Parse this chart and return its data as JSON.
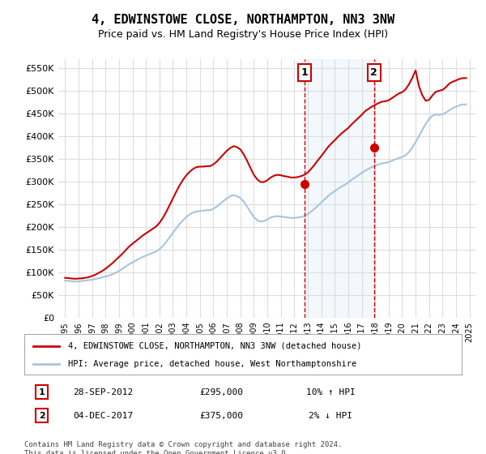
{
  "title": "4, EDWINSTOWE CLOSE, NORTHAMPTON, NN3 3NW",
  "subtitle": "Price paid vs. HM Land Registry's House Price Index (HPI)",
  "ylabel": "",
  "xlabel": "",
  "ylim": [
    0,
    570000
  ],
  "yticks": [
    0,
    50000,
    100000,
    150000,
    200000,
    250000,
    300000,
    350000,
    400000,
    450000,
    500000,
    550000
  ],
  "ytick_labels": [
    "£0",
    "£50K",
    "£100K",
    "£150K",
    "£200K",
    "£250K",
    "£300K",
    "£350K",
    "£400K",
    "£450K",
    "£500K",
    "£550K"
  ],
  "xlim_start": 1994.5,
  "xlim_end": 2025.5,
  "xtick_years": [
    1995,
    1996,
    1997,
    1998,
    1999,
    2000,
    2001,
    2002,
    2003,
    2004,
    2005,
    2006,
    2007,
    2008,
    2009,
    2010,
    2011,
    2012,
    2013,
    2014,
    2015,
    2016,
    2017,
    2018,
    2019,
    2020,
    2021,
    2022,
    2023,
    2024,
    2025
  ],
  "hpi_line_color": "#a8c4e0",
  "price_line_color": "#cc0000",
  "marker_color": "#cc0000",
  "dashed_line_color": "#cc0000",
  "shaded_color": "#d0e4f7",
  "purchase1_x": 2012.75,
  "purchase1_y": 295000,
  "purchase2_x": 2017.92,
  "purchase2_y": 375000,
  "legend_label1": "4, EDWINSTOWE CLOSE, NORTHAMPTON, NN3 3NW (detached house)",
  "legend_label2": "HPI: Average price, detached house, West Northamptonshire",
  "note1_num": "1",
  "note1_date": "28-SEP-2012",
  "note1_price": "£295,000",
  "note1_hpi": "10% ↑ HPI",
  "note2_num": "2",
  "note2_date": "04-DEC-2017",
  "note2_price": "£375,000",
  "note2_hpi": "2% ↓ HPI",
  "footnote": "Contains HM Land Registry data © Crown copyright and database right 2024.\nThis data is licensed under the Open Government Licence v3.0.",
  "bg_color": "#ffffff",
  "plot_bg_color": "#ffffff",
  "grid_color": "#dddddd",
  "hpi_data_x": [
    1995.0,
    1995.25,
    1995.5,
    1995.75,
    1996.0,
    1996.25,
    1996.5,
    1996.75,
    1997.0,
    1997.25,
    1997.5,
    1997.75,
    1998.0,
    1998.25,
    1998.5,
    1998.75,
    1999.0,
    1999.25,
    1999.5,
    1999.75,
    2000.0,
    2000.25,
    2000.5,
    2000.75,
    2001.0,
    2001.25,
    2001.5,
    2001.75,
    2002.0,
    2002.25,
    2002.5,
    2002.75,
    2003.0,
    2003.25,
    2003.5,
    2003.75,
    2004.0,
    2004.25,
    2004.5,
    2004.75,
    2005.0,
    2005.25,
    2005.5,
    2005.75,
    2006.0,
    2006.25,
    2006.5,
    2006.75,
    2007.0,
    2007.25,
    2007.5,
    2007.75,
    2008.0,
    2008.25,
    2008.5,
    2008.75,
    2009.0,
    2009.25,
    2009.5,
    2009.75,
    2010.0,
    2010.25,
    2010.5,
    2010.75,
    2011.0,
    2011.25,
    2011.5,
    2011.75,
    2012.0,
    2012.25,
    2012.5,
    2012.75,
    2013.0,
    2013.25,
    2013.5,
    2013.75,
    2014.0,
    2014.25,
    2014.5,
    2014.75,
    2015.0,
    2015.25,
    2015.5,
    2015.75,
    2016.0,
    2016.25,
    2016.5,
    2016.75,
    2017.0,
    2017.25,
    2017.5,
    2017.75,
    2018.0,
    2018.25,
    2018.5,
    2018.75,
    2019.0,
    2019.25,
    2019.5,
    2019.75,
    2020.0,
    2020.25,
    2020.5,
    2020.75,
    2021.0,
    2021.25,
    2021.5,
    2021.75,
    2022.0,
    2022.25,
    2022.5,
    2022.75,
    2023.0,
    2023.25,
    2023.5,
    2023.75,
    2024.0,
    2024.25,
    2024.5,
    2024.75
  ],
  "hpi_data_y": [
    82000,
    81500,
    80500,
    80000,
    80500,
    81000,
    82000,
    83000,
    84000,
    85500,
    87000,
    89000,
    91000,
    93000,
    96000,
    99000,
    103000,
    108000,
    113000,
    118000,
    122000,
    126000,
    130000,
    134000,
    137000,
    140000,
    143000,
    146000,
    151000,
    158000,
    167000,
    177000,
    187000,
    197000,
    207000,
    215000,
    222000,
    228000,
    232000,
    234000,
    235000,
    236000,
    237000,
    237000,
    240000,
    245000,
    251000,
    257000,
    263000,
    268000,
    270000,
    268000,
    264000,
    256000,
    245000,
    233000,
    222000,
    215000,
    212000,
    213000,
    217000,
    221000,
    223000,
    224000,
    223000,
    222000,
    221000,
    220000,
    220000,
    221000,
    222000,
    224000,
    228000,
    234000,
    240000,
    247000,
    254000,
    261000,
    268000,
    274000,
    279000,
    284000,
    289000,
    293000,
    298000,
    304000,
    309000,
    314000,
    319000,
    324000,
    328000,
    332000,
    335000,
    338000,
    340000,
    341000,
    343000,
    346000,
    349000,
    352000,
    354000,
    358000,
    365000,
    375000,
    387000,
    400000,
    414000,
    427000,
    438000,
    445000,
    448000,
    447000,
    448000,
    452000,
    457000,
    462000,
    465000,
    468000,
    470000,
    470000
  ],
  "price_data_x": [
    1995.0,
    1995.25,
    1995.5,
    1995.75,
    1996.0,
    1996.25,
    1996.5,
    1996.75,
    1997.0,
    1997.25,
    1997.5,
    1997.75,
    1998.0,
    1998.25,
    1998.5,
    1998.75,
    1999.0,
    1999.25,
    1999.5,
    1999.75,
    2000.0,
    2000.25,
    2000.5,
    2000.75,
    2001.0,
    2001.25,
    2001.5,
    2001.75,
    2002.0,
    2002.25,
    2002.5,
    2002.75,
    2003.0,
    2003.25,
    2003.5,
    2003.75,
    2004.0,
    2004.25,
    2004.5,
    2004.75,
    2005.0,
    2005.25,
    2005.5,
    2005.75,
    2006.0,
    2006.25,
    2006.5,
    2006.75,
    2007.0,
    2007.25,
    2007.5,
    2007.75,
    2008.0,
    2008.25,
    2008.5,
    2008.75,
    2009.0,
    2009.25,
    2009.5,
    2009.75,
    2010.0,
    2010.25,
    2010.5,
    2010.75,
    2011.0,
    2011.25,
    2011.5,
    2011.75,
    2012.0,
    2012.25,
    2012.5,
    2012.75,
    2013.0,
    2013.25,
    2013.5,
    2013.75,
    2014.0,
    2014.25,
    2014.5,
    2014.75,
    2015.0,
    2015.25,
    2015.5,
    2015.75,
    2016.0,
    2016.25,
    2016.5,
    2016.75,
    2017.0,
    2017.25,
    2017.5,
    2017.75,
    2018.0,
    2018.25,
    2018.5,
    2018.75,
    2019.0,
    2019.25,
    2019.5,
    2019.75,
    2020.0,
    2020.25,
    2020.5,
    2020.75,
    2021.0,
    2021.25,
    2021.5,
    2021.75,
    2022.0,
    2022.25,
    2022.5,
    2022.75,
    2023.0,
    2023.25,
    2023.5,
    2023.75,
    2024.0,
    2024.25,
    2024.5,
    2024.75
  ],
  "price_data_y": [
    88000,
    87500,
    86500,
    86000,
    86500,
    87000,
    88000,
    89500,
    92000,
    95000,
    99000,
    103000,
    108000,
    114000,
    120000,
    127000,
    134000,
    141000,
    149000,
    157000,
    163000,
    169000,
    175000,
    181000,
    186000,
    191000,
    196000,
    201000,
    209000,
    220000,
    233000,
    248000,
    263000,
    278000,
    292000,
    304000,
    314000,
    322000,
    328000,
    332000,
    333000,
    333000,
    334000,
    334000,
    338000,
    344000,
    352000,
    360000,
    368000,
    374000,
    378000,
    376000,
    371000,
    360000,
    346000,
    330000,
    315000,
    305000,
    299000,
    299000,
    303000,
    309000,
    313000,
    315000,
    314000,
    312000,
    311000,
    309000,
    309000,
    310000,
    312000,
    315000,
    320000,
    328000,
    337000,
    347000,
    356000,
    366000,
    376000,
    384000,
    391000,
    399000,
    406000,
    412000,
    418000,
    426000,
    433000,
    440000,
    447000,
    455000,
    460000,
    465000,
    469000,
    473000,
    476000,
    477000,
    479000,
    484000,
    489000,
    494000,
    497000,
    503000,
    514000,
    528000,
    545000,
    510000,
    490000,
    478000,
    480000,
    490000,
    498000,
    500000,
    502000,
    508000,
    516000,
    520000,
    523000,
    526000,
    528000,
    528000
  ]
}
